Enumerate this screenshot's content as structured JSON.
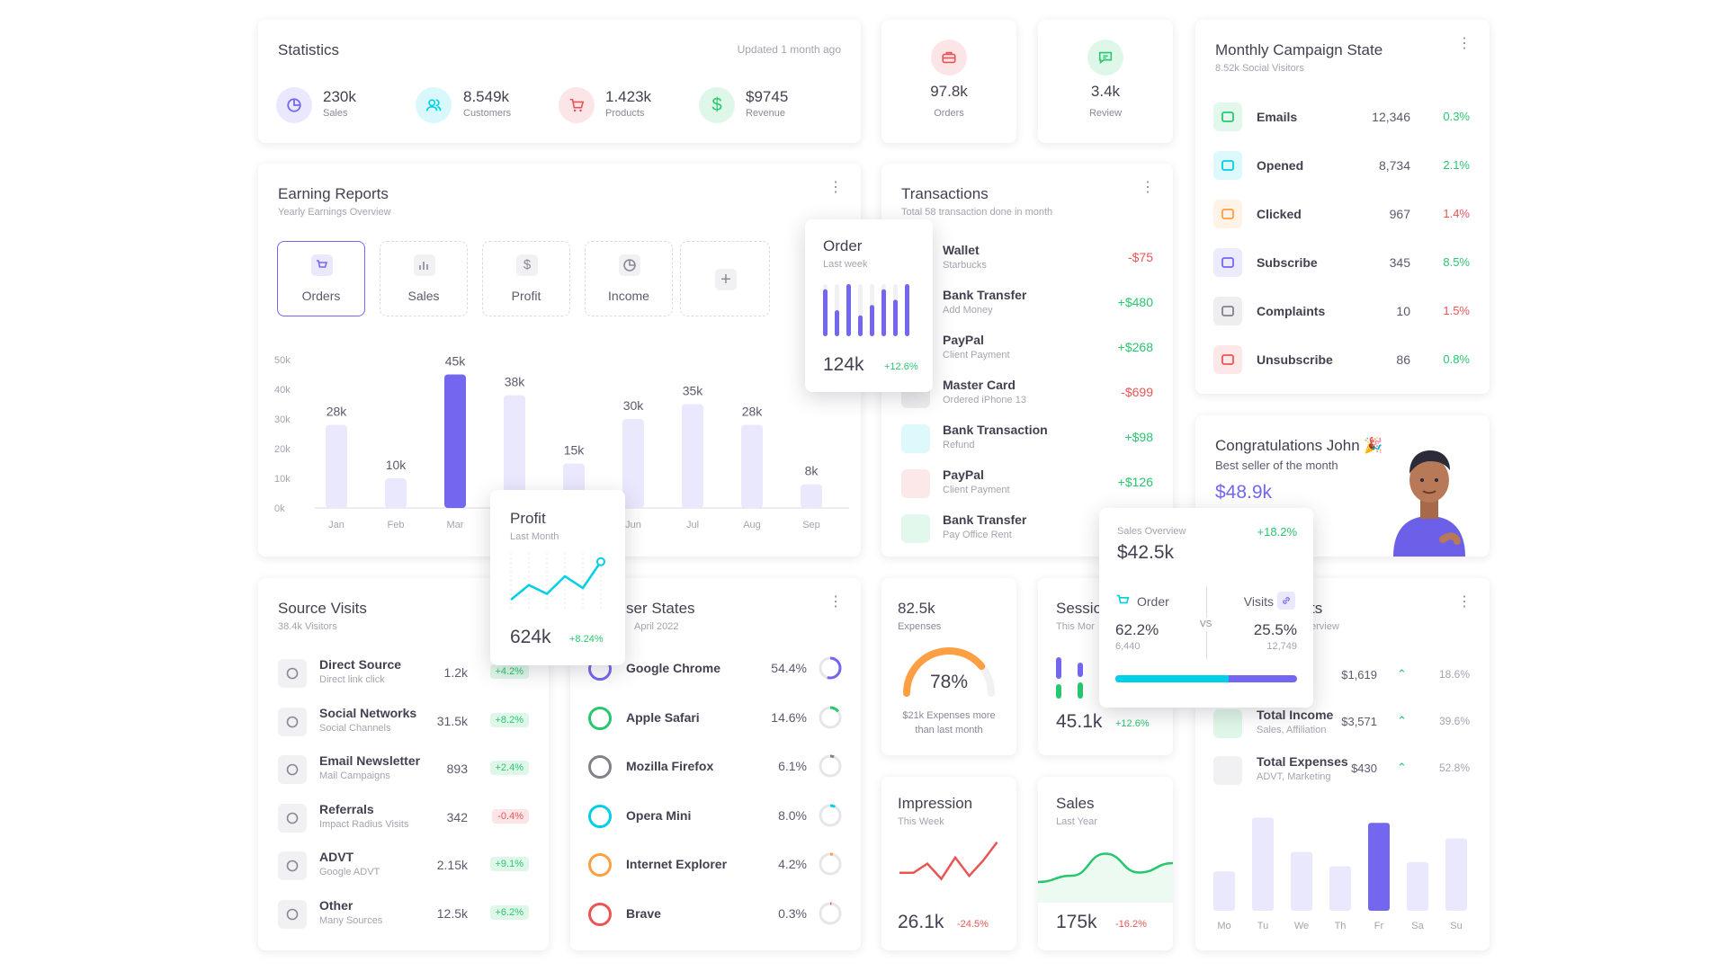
{
  "stats": {
    "title": "Statistics",
    "updated": "Updated 1 month ago",
    "items": [
      {
        "value": "230k",
        "label": "Sales"
      },
      {
        "value": "8.549k",
        "label": "Customers"
      },
      {
        "value": "1.423k",
        "label": "Products"
      },
      {
        "value": "$9745",
        "label": "Revenue"
      }
    ]
  },
  "orders_card": {
    "value": "97.8k",
    "label": "Orders"
  },
  "review_card": {
    "value": "3.4k",
    "label": "Review"
  },
  "campaign": {
    "title": "Monthly Campaign State",
    "subtitle": "8.52k Social Visitors",
    "rows": [
      {
        "name": "Emails",
        "count": "12,346",
        "pct": "0.3%",
        "trend": "up",
        "color": "#28c76f"
      },
      {
        "name": "Opened",
        "count": "8,734",
        "pct": "2.1%",
        "trend": "up",
        "color": "#00cfe8"
      },
      {
        "name": "Clicked",
        "count": "967",
        "pct": "1.4%",
        "trend": "down",
        "color": "#ff9f43"
      },
      {
        "name": "Subscribe",
        "count": "345",
        "pct": "8.5%",
        "trend": "up",
        "color": "#7367f0"
      },
      {
        "name": "Complaints",
        "count": "10",
        "pct": "1.5%",
        "trend": "down",
        "color": "#82808b"
      },
      {
        "name": "Unsubscribe",
        "count": "86",
        "pct": "0.8%",
        "trend": "up",
        "color": "#ea5455"
      }
    ]
  },
  "earning": {
    "title": "Earning Reports",
    "subtitle": "Yearly Earnings Overview",
    "tabs": [
      "Orders",
      "Sales",
      "Profit",
      "Income"
    ],
    "add": "+"
  },
  "chart_data": [
    {
      "type": "bar",
      "categories": [
        "Jan",
        "Feb",
        "Mar",
        "Apr",
        "May",
        "Jun",
        "Jul",
        "Aug",
        "Sep"
      ],
      "values": [
        28,
        10,
        45,
        38,
        15,
        30,
        35,
        28,
        8
      ],
      "data_labels": [
        "28k",
        "10k",
        "45k",
        "38k",
        "15k",
        "30k",
        "35k",
        "28k",
        "8k"
      ],
      "y_ticks": [
        "50k",
        "40k",
        "30k",
        "20k",
        "10k",
        "0k"
      ],
      "ylim": [
        0,
        50
      ],
      "highlight": "Mar"
    },
    {
      "type": "bar",
      "categories": [
        "Mo",
        "Tu",
        "We",
        "Th",
        "Fr",
        "Sa",
        "Su"
      ],
      "values": [
        38,
        90,
        57,
        43,
        85,
        47,
        70
      ],
      "highlight": "Fr"
    },
    {
      "type": "bar",
      "values": [
        90,
        50,
        100,
        40,
        60,
        90,
        70,
        100
      ],
      "title": "Order",
      "subtitle": "Last week",
      "value": "124k",
      "change": "+12.6%"
    },
    {
      "type": "line",
      "values": [
        20,
        45,
        30,
        60,
        40,
        85
      ],
      "title": "Profit",
      "subtitle": "Last Month",
      "value": "624k",
      "change": "+8.24%"
    },
    {
      "type": "line",
      "values": [
        40,
        40,
        55,
        30,
        65,
        35,
        60,
        90
      ],
      "title": "Impression",
      "subtitle": "This Week",
      "value": "26.1k",
      "change": "-24.5%"
    },
    {
      "type": "area",
      "values": [
        30,
        40,
        75,
        45,
        60
      ],
      "title": "Sales",
      "subtitle": "Last Year",
      "value": "175k",
      "change": "-16.2%"
    }
  ],
  "transactions": {
    "title": "Transactions",
    "subtitle": "Total 58 transaction done in month",
    "rows": [
      {
        "name": "Wallet",
        "sub": "Starbucks",
        "amount": "-$75",
        "color": "#7367f0"
      },
      {
        "name": "Bank Transfer",
        "sub": "Add Money",
        "amount": "+$480",
        "color": "#28c76f"
      },
      {
        "name": "PayPal",
        "sub": "Client Payment",
        "amount": "+$268",
        "color": "#ea5455"
      },
      {
        "name": "Master Card",
        "sub": "Ordered iPhone 13",
        "amount": "-$699",
        "color": "#82808b"
      },
      {
        "name": "Bank Transaction",
        "sub": "Refund",
        "amount": "+$98",
        "color": "#00cfe8"
      },
      {
        "name": "PayPal",
        "sub": "Client Payment",
        "amount": "+$126",
        "color": "#ea5455"
      },
      {
        "name": "Bank Transfer",
        "sub": "Pay Office Rent",
        "amount": "",
        "color": "#28c76f"
      }
    ]
  },
  "congrats": {
    "title": "Congratulations John 🎉",
    "subtitle": "Best seller of the month",
    "value": "$48.9k"
  },
  "sales_overview": {
    "label": "Sales Overview",
    "change": "+18.2%",
    "value": "$42.5k",
    "order_label": "Order",
    "order_pct": "62.2%",
    "order_count": "6,440",
    "vs": "VS",
    "visits_label": "Visits",
    "visits_pct": "25.5%",
    "visits_count": "12,749",
    "order_share": 62.2
  },
  "source": {
    "title": "Source Visits",
    "subtitle": "38.4k Visitors",
    "rows": [
      {
        "name": "Direct Source",
        "sub": "Direct link click",
        "val": "1.2k",
        "badge": "+4.2%",
        "pos": true
      },
      {
        "name": "Social Networks",
        "sub": "Social Channels",
        "val": "31.5k",
        "badge": "+8.2%",
        "pos": true
      },
      {
        "name": "Email Newsletter",
        "sub": "Mail Campaigns",
        "val": "893",
        "badge": "+2.4%",
        "pos": true
      },
      {
        "name": "Referrals",
        "sub": "Impact Radius Visits",
        "val": "342",
        "badge": "-0.4%",
        "pos": false
      },
      {
        "name": "ADVT",
        "sub": "Google ADVT",
        "val": "2.15k",
        "badge": "+9.1%",
        "pos": true
      },
      {
        "name": "Other",
        "sub": "Many Sources",
        "val": "12.5k",
        "badge": "+6.2%",
        "pos": true
      }
    ]
  },
  "browser": {
    "title": "ser States",
    "subtitle": "April 2022",
    "rows": [
      {
        "name": "Google Chrome",
        "pct": "54.4%",
        "share": 54.4,
        "color": "#7367f0"
      },
      {
        "name": "Apple Safari",
        "pct": "14.6%",
        "share": 14.6,
        "color": "#28c76f"
      },
      {
        "name": "Mozilla Firefox",
        "pct": "6.1%",
        "share": 6.1,
        "color": "#82808b"
      },
      {
        "name": "Opera Mini",
        "pct": "8.0%",
        "share": 8.0,
        "color": "#00cfe8"
      },
      {
        "name": "Internet Explorer",
        "pct": "4.2%",
        "share": 4.2,
        "color": "#ff9f43"
      },
      {
        "name": "Brave",
        "pct": "0.3%",
        "share": 0.3,
        "color": "#ea5455"
      }
    ]
  },
  "expenses": {
    "value": "82.5k",
    "label": "Expenses",
    "pct": "78%",
    "gauge": 78,
    "note": "$21k Expenses more than last month"
  },
  "session": {
    "title": "Sessio",
    "subtitle": "This Mor",
    "value": "45.1k",
    "change": "+12.6%"
  },
  "report": {
    "title": "ts",
    "subtitle": "erview",
    "rows": [
      {
        "name": "",
        "sub": "",
        "amount": "$1,619",
        "pct": "18.6%"
      },
      {
        "name": "Total Income",
        "sub": "Sales, Affiliation",
        "amount": "$3,571",
        "pct": "39.6%"
      },
      {
        "name": "Total Expenses",
        "sub": "ADVT, Marketing",
        "amount": "$430",
        "pct": "52.8%"
      }
    ]
  }
}
